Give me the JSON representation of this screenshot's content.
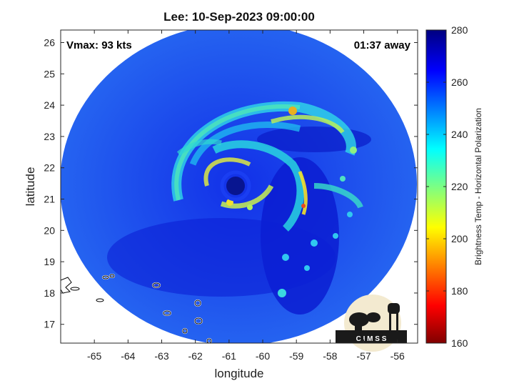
{
  "title": "Lee: 10-Sep-2023 09:00:00",
  "vmax_label": "Vmax: 93 kts",
  "away_label": "01:37 away",
  "xlabel": "longitude",
  "ylabel": "latitude",
  "x_ticks": [
    "-65",
    "-64",
    "-63",
    "-62",
    "-61",
    "-60",
    "-59",
    "-58",
    "-57",
    "-56"
  ],
  "x_tick_values": [
    -65,
    -64,
    -63,
    -62,
    -61,
    -60,
    -59,
    -58,
    -57,
    -56
  ],
  "y_ticks": [
    "26",
    "25",
    "24",
    "23",
    "22",
    "21",
    "20",
    "19",
    "18",
    "17"
  ],
  "y_tick_values": [
    26,
    25,
    24,
    23,
    22,
    21,
    20,
    19,
    18,
    17
  ],
  "xlim": [
    -66,
    -55.4
  ],
  "ylim": [
    16.4,
    26.4
  ],
  "colorbar": {
    "label": "Brightness Temp - Horizontal Polarization",
    "ticks": [
      "280",
      "260",
      "240",
      "220",
      "200",
      "180",
      "160"
    ],
    "tick_values": [
      280,
      260,
      240,
      220,
      200,
      180,
      160
    ],
    "range": [
      160,
      280
    ],
    "colormap": "jet"
  },
  "logo_text": "C I M S S",
  "storm_center": {
    "lon": -60.7,
    "lat": 21.3
  }
}
